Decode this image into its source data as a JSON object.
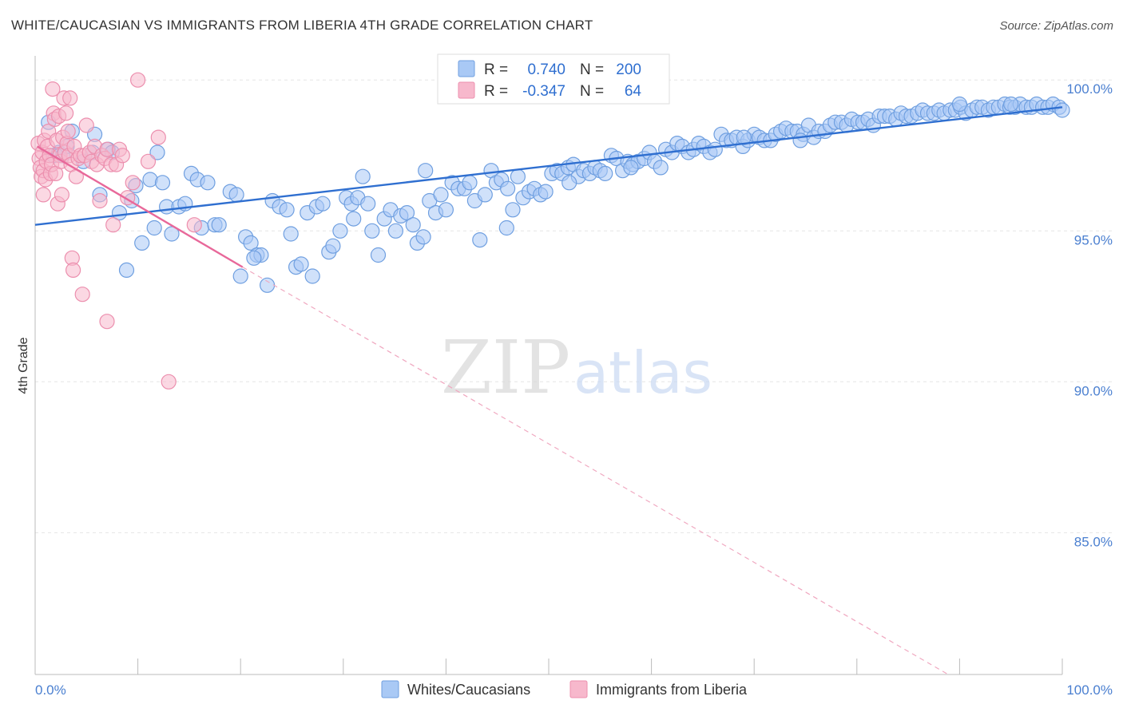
{
  "header": {
    "title": "WHITE/CAUCASIAN VS IMMIGRANTS FROM LIBERIA 4TH GRADE CORRELATION CHART",
    "source": "Source: ZipAtlas.com"
  },
  "watermark": {
    "zip": "ZIP",
    "atlas": "atlas"
  },
  "legend_top": {
    "rows": [
      {
        "r_label": "R =",
        "r_value": "0.740",
        "n_label": "N =",
        "n_value": "200",
        "color": "#a9c9f5"
      },
      {
        "r_label": "R =",
        "r_value": "-0.347",
        "n_label": "N =",
        "n_value": "64",
        "color": "#f7b8cc"
      }
    ]
  },
  "legend_bottom": [
    {
      "label": "Whites/Caucasians",
      "color": "#a9c9f5"
    },
    {
      "label": "Immigrants from Liberia",
      "color": "#f7b8cc"
    }
  ],
  "chart_data": {
    "type": "scatter",
    "title": "WHITE/CAUCASIAN VS IMMIGRANTS FROM LIBERIA 4TH GRADE CORRELATION CHART",
    "ylabel": "4th Grade",
    "xlabel": "",
    "xlim": [
      0,
      100
    ],
    "ylim": [
      80.3,
      100.8
    ],
    "x_tick_labels": [
      "0.0%",
      "100.0%"
    ],
    "y_ticks": [
      85,
      90,
      95,
      100
    ],
    "y_tick_labels": [
      "85.0%",
      "90.0%",
      "95.0%",
      "100.0%"
    ],
    "grid": true,
    "series": [
      {
        "name": "Whites/Caucasians",
        "color": "#a9c9f5",
        "stroke": "#6f9fe0",
        "trend": {
          "x": [
            0,
            100
          ],
          "y": [
            95.2,
            99.1
          ],
          "color": "#2f6fd0"
        },
        "points": [
          [
            1.3,
            98.6
          ],
          [
            1.8,
            97.5
          ],
          [
            2.3,
            97.6
          ],
          [
            2.7,
            97.5
          ],
          [
            3.1,
            97.8
          ],
          [
            3.6,
            98.3
          ],
          [
            4.7,
            97.3
          ],
          [
            5.6,
            97.6
          ],
          [
            5.8,
            98.2
          ],
          [
            6.3,
            96.2
          ],
          [
            7.1,
            97.7
          ],
          [
            7.5,
            97.6
          ],
          [
            8.2,
            95.6
          ],
          [
            8.9,
            93.7
          ],
          [
            9.4,
            96.0
          ],
          [
            9.8,
            96.5
          ],
          [
            10.4,
            94.6
          ],
          [
            11.2,
            96.7
          ],
          [
            11.6,
            95.1
          ],
          [
            11.9,
            97.6
          ],
          [
            12.4,
            96.6
          ],
          [
            12.8,
            95.8
          ],
          [
            13.3,
            94.9
          ],
          [
            14.0,
            95.8
          ],
          [
            14.6,
            95.9
          ],
          [
            15.2,
            96.9
          ],
          [
            15.8,
            96.7
          ],
          [
            16.2,
            95.1
          ],
          [
            16.8,
            96.6
          ],
          [
            17.5,
            95.2
          ],
          [
            17.9,
            95.2
          ],
          [
            19.0,
            96.3
          ],
          [
            19.6,
            96.2
          ],
          [
            20.0,
            93.5
          ],
          [
            20.5,
            94.8
          ],
          [
            21.0,
            94.6
          ],
          [
            21.6,
            94.2
          ],
          [
            22.0,
            94.2
          ],
          [
            22.6,
            93.2
          ],
          [
            23.1,
            96.0
          ],
          [
            23.8,
            95.8
          ],
          [
            24.5,
            95.7
          ],
          [
            24.9,
            94.9
          ],
          [
            25.4,
            93.8
          ],
          [
            25.9,
            93.9
          ],
          [
            26.5,
            95.6
          ],
          [
            27.0,
            93.5
          ],
          [
            27.4,
            95.8
          ],
          [
            28.0,
            95.9
          ],
          [
            28.6,
            94.3
          ],
          [
            29.0,
            94.5
          ],
          [
            29.7,
            95.0
          ],
          [
            30.3,
            96.1
          ],
          [
            30.8,
            95.9
          ],
          [
            31.4,
            96.1
          ],
          [
            31.9,
            96.8
          ],
          [
            32.4,
            95.9
          ],
          [
            32.8,
            95.0
          ],
          [
            33.4,
            94.2
          ],
          [
            34.0,
            95.4
          ],
          [
            34.6,
            95.7
          ],
          [
            35.1,
            95.0
          ],
          [
            35.6,
            95.5
          ],
          [
            36.2,
            95.6
          ],
          [
            36.8,
            95.2
          ],
          [
            37.2,
            94.6
          ],
          [
            37.8,
            94.8
          ],
          [
            38.4,
            96.0
          ],
          [
            39.0,
            95.6
          ],
          [
            39.5,
            96.2
          ],
          [
            40.0,
            95.7
          ],
          [
            40.6,
            96.6
          ],
          [
            41.2,
            96.4
          ],
          [
            41.8,
            96.4
          ],
          [
            42.3,
            96.6
          ],
          [
            42.8,
            96.0
          ],
          [
            43.3,
            94.7
          ],
          [
            43.8,
            96.2
          ],
          [
            44.4,
            97.0
          ],
          [
            44.9,
            96.6
          ],
          [
            45.4,
            96.7
          ],
          [
            45.9,
            95.1
          ],
          [
            46.5,
            95.7
          ],
          [
            47.0,
            96.8
          ],
          [
            47.5,
            96.1
          ],
          [
            48.1,
            96.3
          ],
          [
            48.6,
            96.4
          ],
          [
            49.2,
            96.2
          ],
          [
            49.7,
            96.3
          ],
          [
            50.3,
            96.9
          ],
          [
            50.8,
            97.0
          ],
          [
            51.3,
            96.9
          ],
          [
            51.9,
            97.1
          ],
          [
            52.4,
            97.2
          ],
          [
            52.9,
            96.8
          ],
          [
            53.4,
            97.0
          ],
          [
            54.0,
            96.9
          ],
          [
            54.5,
            97.1
          ],
          [
            55.0,
            97.0
          ],
          [
            55.5,
            96.9
          ],
          [
            56.1,
            97.5
          ],
          [
            56.6,
            97.4
          ],
          [
            57.2,
            97.0
          ],
          [
            57.7,
            97.3
          ],
          [
            58.2,
            97.2
          ],
          [
            58.7,
            97.3
          ],
          [
            59.3,
            97.4
          ],
          [
            59.8,
            97.6
          ],
          [
            60.3,
            97.3
          ],
          [
            60.9,
            97.1
          ],
          [
            61.4,
            97.7
          ],
          [
            62.0,
            97.6
          ],
          [
            62.5,
            97.9
          ],
          [
            63.0,
            97.8
          ],
          [
            63.6,
            97.6
          ],
          [
            64.1,
            97.7
          ],
          [
            64.6,
            97.9
          ],
          [
            65.1,
            97.8
          ],
          [
            65.7,
            97.6
          ],
          [
            66.2,
            97.7
          ],
          [
            66.8,
            98.2
          ],
          [
            67.3,
            98.0
          ],
          [
            67.8,
            98.0
          ],
          [
            68.3,
            98.1
          ],
          [
            68.9,
            97.8
          ],
          [
            69.4,
            98.0
          ],
          [
            70.0,
            98.2
          ],
          [
            70.5,
            98.1
          ],
          [
            71.0,
            98.0
          ],
          [
            71.6,
            98.0
          ],
          [
            72.1,
            98.2
          ],
          [
            72.6,
            98.3
          ],
          [
            73.1,
            98.4
          ],
          [
            73.7,
            98.3
          ],
          [
            74.2,
            98.3
          ],
          [
            74.8,
            98.2
          ],
          [
            75.3,
            98.5
          ],
          [
            75.8,
            98.1
          ],
          [
            76.3,
            98.3
          ],
          [
            76.9,
            98.3
          ],
          [
            77.4,
            98.5
          ],
          [
            77.9,
            98.6
          ],
          [
            78.5,
            98.6
          ],
          [
            79.0,
            98.5
          ],
          [
            79.5,
            98.7
          ],
          [
            80.1,
            98.6
          ],
          [
            80.6,
            98.6
          ],
          [
            81.1,
            98.7
          ],
          [
            81.6,
            98.5
          ],
          [
            82.2,
            98.8
          ],
          [
            82.7,
            98.8
          ],
          [
            83.2,
            98.8
          ],
          [
            83.8,
            98.7
          ],
          [
            84.3,
            98.9
          ],
          [
            84.8,
            98.8
          ],
          [
            85.3,
            98.8
          ],
          [
            85.9,
            98.9
          ],
          [
            86.4,
            99.0
          ],
          [
            86.9,
            98.9
          ],
          [
            87.5,
            98.9
          ],
          [
            88.0,
            99.0
          ],
          [
            88.5,
            98.9
          ],
          [
            89.1,
            99.0
          ],
          [
            89.6,
            99.0
          ],
          [
            90.1,
            99.1
          ],
          [
            90.6,
            98.9
          ],
          [
            91.2,
            99.0
          ],
          [
            91.7,
            99.1
          ],
          [
            92.2,
            99.1
          ],
          [
            92.8,
            99.0
          ],
          [
            93.3,
            99.1
          ],
          [
            93.8,
            99.1
          ],
          [
            94.4,
            99.2
          ],
          [
            94.9,
            99.1
          ],
          [
            95.4,
            99.1
          ],
          [
            95.9,
            99.2
          ],
          [
            96.5,
            99.1
          ],
          [
            97.0,
            99.1
          ],
          [
            97.5,
            99.2
          ],
          [
            98.1,
            99.1
          ],
          [
            98.6,
            99.1
          ],
          [
            99.1,
            99.2
          ],
          [
            99.7,
            99.1
          ],
          [
            100.0,
            99.0
          ],
          [
            46.0,
            96.4
          ],
          [
            38.0,
            97.0
          ],
          [
            58.0,
            97.1
          ],
          [
            69.0,
            98.1
          ],
          [
            74.5,
            98.0
          ],
          [
            31.0,
            95.4
          ],
          [
            21.3,
            94.1
          ],
          [
            52.0,
            96.6
          ],
          [
            90.0,
            99.2
          ],
          [
            95.0,
            99.2
          ]
        ]
      },
      {
        "name": "Immigrants from Liberia",
        "color": "#f7b8cc",
        "stroke": "#ec8fae",
        "trend": {
          "x": [
            0.2,
            20.2
          ],
          "y": [
            97.8,
            93.8
          ],
          "color": "#e8689a"
        },
        "trend_extension": {
          "x": [
            20.2,
            88.9
          ],
          "y": [
            93.8,
            80.3
          ],
          "color": "#f0a8c0"
        },
        "points": [
          [
            0.3,
            97.9
          ],
          [
            0.4,
            97.4
          ],
          [
            0.5,
            97.1
          ],
          [
            0.6,
            96.8
          ],
          [
            0.7,
            97.6
          ],
          [
            0.8,
            97.0
          ],
          [
            0.9,
            98.0
          ],
          [
            1.0,
            96.7
          ],
          [
            1.1,
            97.3
          ],
          [
            1.2,
            97.8
          ],
          [
            1.3,
            98.3
          ],
          [
            1.4,
            97.5
          ],
          [
            1.5,
            96.9
          ],
          [
            1.6,
            97.2
          ],
          [
            1.7,
            99.7
          ],
          [
            1.8,
            98.9
          ],
          [
            1.9,
            98.7
          ],
          [
            2.0,
            96.9
          ],
          [
            2.1,
            98.0
          ],
          [
            2.2,
            95.9
          ],
          [
            2.3,
            98.8
          ],
          [
            2.4,
            97.5
          ],
          [
            2.5,
            97.3
          ],
          [
            2.6,
            96.2
          ],
          [
            2.7,
            98.1
          ],
          [
            2.8,
            99.4
          ],
          [
            2.9,
            97.6
          ],
          [
            3.0,
            98.9
          ],
          [
            3.1,
            97.9
          ],
          [
            3.2,
            98.3
          ],
          [
            3.3,
            97.5
          ],
          [
            3.4,
            99.4
          ],
          [
            3.5,
            97.2
          ],
          [
            3.6,
            94.1
          ],
          [
            3.7,
            93.7
          ],
          [
            3.8,
            97.8
          ],
          [
            4.0,
            96.8
          ],
          [
            4.2,
            97.4
          ],
          [
            4.4,
            97.5
          ],
          [
            4.6,
            92.9
          ],
          [
            4.8,
            97.5
          ],
          [
            5.0,
            98.5
          ],
          [
            5.3,
            97.6
          ],
          [
            5.5,
            97.3
          ],
          [
            5.8,
            97.8
          ],
          [
            6.0,
            97.2
          ],
          [
            6.3,
            96.0
          ],
          [
            6.5,
            97.5
          ],
          [
            6.8,
            97.4
          ],
          [
            7.0,
            97.7
          ],
          [
            7.4,
            97.2
          ],
          [
            7.6,
            95.2
          ],
          [
            7.9,
            97.2
          ],
          [
            8.2,
            97.7
          ],
          [
            8.5,
            97.5
          ],
          [
            9.0,
            96.1
          ],
          [
            9.5,
            96.6
          ],
          [
            10.0,
            100.0
          ],
          [
            11.0,
            97.3
          ],
          [
            12.0,
            98.1
          ],
          [
            13.0,
            90.0
          ],
          [
            15.5,
            95.2
          ],
          [
            7.0,
            92.0
          ],
          [
            0.8,
            96.2
          ]
        ]
      }
    ]
  }
}
